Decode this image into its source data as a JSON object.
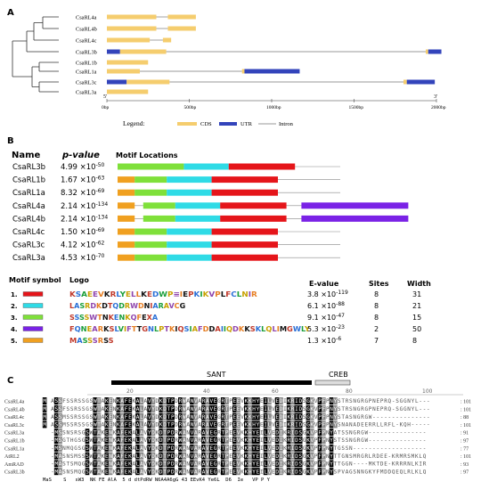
{
  "panelA": {
    "label": "A",
    "genes": [
      "CsaRL4a",
      "CsaRL4b",
      "CsaRL4c",
      "CsaRL3b",
      "CsaRL1b",
      "CsaRL1a",
      "CsaRL3c",
      "CsaRL3a"
    ],
    "structures": [
      {
        "name": "CsaRL4a",
        "length": 540,
        "segments": [
          {
            "t": "cds",
            "s": 0,
            "e": 300
          },
          {
            "t": "intron",
            "s": 300,
            "e": 370
          },
          {
            "t": "cds",
            "s": 370,
            "e": 540
          }
        ]
      },
      {
        "name": "CsaRL4b",
        "length": 540,
        "segments": [
          {
            "t": "cds",
            "s": 0,
            "e": 300
          },
          {
            "t": "intron",
            "s": 300,
            "e": 370
          },
          {
            "t": "cds",
            "s": 370,
            "e": 540
          }
        ]
      },
      {
        "name": "CsaRL4c",
        "length": 390,
        "segments": [
          {
            "t": "cds",
            "s": 0,
            "e": 260
          },
          {
            "t": "intron",
            "s": 260,
            "e": 340
          },
          {
            "t": "cds",
            "s": 340,
            "e": 390
          }
        ]
      },
      {
        "name": "CsaRL3b",
        "length": 2030,
        "segments": [
          {
            "t": "utr",
            "s": 0,
            "e": 80
          },
          {
            "t": "cds",
            "s": 80,
            "e": 360
          },
          {
            "t": "intron",
            "s": 360,
            "e": 1935
          },
          {
            "t": "cds",
            "s": 1935,
            "e": 1950
          },
          {
            "t": "utr",
            "s": 1950,
            "e": 2030
          }
        ]
      },
      {
        "name": "CsaRL1b",
        "length": 250,
        "segments": [
          {
            "t": "cds",
            "s": 0,
            "e": 250
          }
        ]
      },
      {
        "name": "CsaRL1a",
        "length": 1170,
        "segments": [
          {
            "t": "cds",
            "s": 0,
            "e": 200
          },
          {
            "t": "intron",
            "s": 200,
            "e": 820
          },
          {
            "t": "cds",
            "s": 820,
            "e": 835
          },
          {
            "t": "utr",
            "s": 835,
            "e": 1170
          }
        ]
      },
      {
        "name": "CsaRL3c",
        "length": 1990,
        "segments": [
          {
            "t": "utr",
            "s": 0,
            "e": 120
          },
          {
            "t": "cds",
            "s": 120,
            "e": 380
          },
          {
            "t": "intron",
            "s": 380,
            "e": 1800
          },
          {
            "t": "cds",
            "s": 1800,
            "e": 1820
          },
          {
            "t": "utr",
            "s": 1820,
            "e": 1990
          }
        ]
      },
      {
        "name": "CsaRL3a",
        "length": 250,
        "segments": [
          {
            "t": "cds",
            "s": 0,
            "e": 250
          }
        ]
      }
    ],
    "axis_ticks": [
      "0bp",
      "500bp",
      "1000bp",
      "1500bp",
      "2000bp"
    ],
    "tick_values": [
      0,
      500,
      1000,
      1500,
      2000
    ],
    "five_prime": "5'",
    "three_prime": "3'",
    "legend_title": "Legend:",
    "legend_items": [
      "CDS",
      "UTR",
      "Intron"
    ],
    "colors": {
      "cds": "#f5cd6e",
      "utr": "#3344bb",
      "intron": "#777777"
    }
  },
  "panelB": {
    "label": "B",
    "header_name": "Name",
    "header_pvalue": "p-value",
    "header_motif": "Motif Locations",
    "rows": [
      {
        "name": "CsaRL3b",
        "p_mant": "4.99",
        "p_exp": "-50",
        "length": 250,
        "motifs": [
          [
            2,
            0,
            31
          ],
          [
            1,
            31,
            21
          ],
          [
            0,
            52,
            31
          ]
        ]
      },
      {
        "name": "CsaRL1b",
        "p_mant": "1.67",
        "p_exp": "-63",
        "length": 250,
        "motifs": [
          [
            4,
            0,
            8
          ],
          [
            2,
            8,
            15
          ],
          [
            1,
            23,
            21
          ],
          [
            0,
            44,
            31
          ]
        ]
      },
      {
        "name": "CsaRL1a",
        "p_mant": "8.32",
        "p_exp": "-69",
        "length": 250,
        "motifs": [
          [
            4,
            0,
            8
          ],
          [
            2,
            8,
            15
          ],
          [
            1,
            23,
            21
          ],
          [
            0,
            44,
            31
          ]
        ]
      },
      {
        "name": "CsaRL4a",
        "p_mant": "2.14",
        "p_exp": "-134",
        "length": 250,
        "motifs": [
          [
            4,
            0,
            8
          ],
          [
            2,
            12,
            15
          ],
          [
            1,
            27,
            21
          ],
          [
            0,
            48,
            31
          ],
          [
            3,
            86,
            50
          ]
        ]
      },
      {
        "name": "CsaRL4b",
        "p_mant": "2.14",
        "p_exp": "-134",
        "length": 250,
        "motifs": [
          [
            4,
            0,
            8
          ],
          [
            2,
            12,
            15
          ],
          [
            1,
            27,
            21
          ],
          [
            0,
            48,
            31
          ],
          [
            3,
            86,
            50
          ]
        ]
      },
      {
        "name": "CsaRL4c",
        "p_mant": "1.50",
        "p_exp": "-69",
        "length": 250,
        "motifs": [
          [
            4,
            0,
            8
          ],
          [
            2,
            8,
            15
          ],
          [
            1,
            23,
            21
          ],
          [
            0,
            44,
            31
          ]
        ]
      },
      {
        "name": "CsaRL3c",
        "p_mant": "4.12",
        "p_exp": "-62",
        "length": 250,
        "motifs": [
          [
            4,
            0,
            8
          ],
          [
            2,
            8,
            15
          ],
          [
            1,
            23,
            21
          ],
          [
            0,
            44,
            31
          ]
        ]
      },
      {
        "name": "CsaRL3a",
        "p_mant": "4.53",
        "p_exp": "-70",
        "length": 250,
        "motifs": [
          [
            4,
            0,
            8
          ],
          [
            2,
            8,
            15
          ],
          [
            1,
            23,
            21
          ],
          [
            0,
            44,
            31
          ]
        ]
      }
    ],
    "motif_colors": [
      "#e5151a",
      "#2fdbe6",
      "#7fe03a",
      "#7a22e6",
      "#f0a020"
    ],
    "motif_symbol_header": "Motif symbol",
    "logo_header": "Logo",
    "evalue_header": "E-value",
    "sites_header": "Sites",
    "width_header": "Width",
    "motifs": [
      {
        "num": "1.",
        "logo": "KSAEEVKRLYELLKEDWP≡IEPKIKVPLFCLNIR",
        "e_mant": "3.8",
        "e_exp": "-119",
        "sites": "8",
        "width": "31"
      },
      {
        "num": "2.",
        "logo": "LASRDKDTQDRWDNIARAVCG",
        "e_mant": "6.1",
        "e_exp": "-88",
        "sites": "8",
        "width": "21"
      },
      {
        "num": "3.",
        "logo": "SSSSWTNKENKQFEXA",
        "e_mant": "9.1",
        "e_exp": "-47",
        "sites": "8",
        "width": "15"
      },
      {
        "num": "4.",
        "logo": "FQNEARKSLVIFTTGNLPTKIQSIAFDDAIIQDKKSKLQLIMGWLY",
        "e_mant": "5.3",
        "e_exp": "-23",
        "sites": "2",
        "width": "50"
      },
      {
        "num": "5.",
        "logo": "MASSSRSS",
        "e_mant": "1.3",
        "e_exp": "-6",
        "sites": "7",
        "width": "8"
      }
    ]
  },
  "panelC": {
    "label": "C",
    "sant": "SANT",
    "creb": "CREB",
    "scale_ticks": [
      "20",
      "40",
      "60",
      "80",
      "100"
    ],
    "rows": [
      {
        "name": "CsaRL4a",
        "start": "M ASSFSSRSSG",
        "end": "STRSNGRGPNEPRQ-SGGNYL---",
        "count": "101"
      },
      {
        "name": "CsaRL4b",
        "start": "M ASSFSSRSSG",
        "end": "STRSNGRGPNEPRQ-SGGNYL---",
        "count": "101"
      },
      {
        "name": "CsaRL4c",
        "start": "M ASSMSSRSSG",
        "end": "STASNGRGW---------------",
        "count": "88"
      },
      {
        "name": "CsaRL3c",
        "start": "M ASSMSSRSSG",
        "end": "SNANADEERRLLRFL-KQH-----",
        "count": "101"
      },
      {
        "name": "CsaRL3a",
        "start": "---MSSNSRSG",
        "end": "ATSSNGRGW---------------",
        "count": "91"
      },
      {
        "name": "CsaRL1b",
        "start": "---MSGTHGSG",
        "end": "STSSNGRGW---------------",
        "count": "97"
      },
      {
        "name": "CsaRL1a",
        "start": "---MSNMQGSG",
        "end": "TGSSN-------------------",
        "count": "77"
      },
      {
        "name": "AtRL2",
        "start": "---MASNSMSS",
        "end": "TTGNSMRGRLRDEE-KRMRSMKLQ",
        "count": "101"
      },
      {
        "name": "AmRAD",
        "start": "---MASTSMQG",
        "end": "TTGGN----MKTDE-KRRRNLKIR",
        "count": "93"
      },
      {
        "name": "CsaRL3b",
        "start": "---MASNSMQG",
        "end": "SPVAGSNNGKYFMDDQEQLRLKLQ",
        "count": "97"
      }
    ],
    "core": "SWTAKENKAFEKALAVYDKDTPDRWANVARAVEGRTPEEVKKHYEILVEDIKRIDSGKVPFPNY",
    "consensus": "MaS    S   sW3  NK FE AlA  5 d dtPdRW N6A4A6gG 43 EEvK4 Ye6L  D6  Ie   VP P Y"
  }
}
